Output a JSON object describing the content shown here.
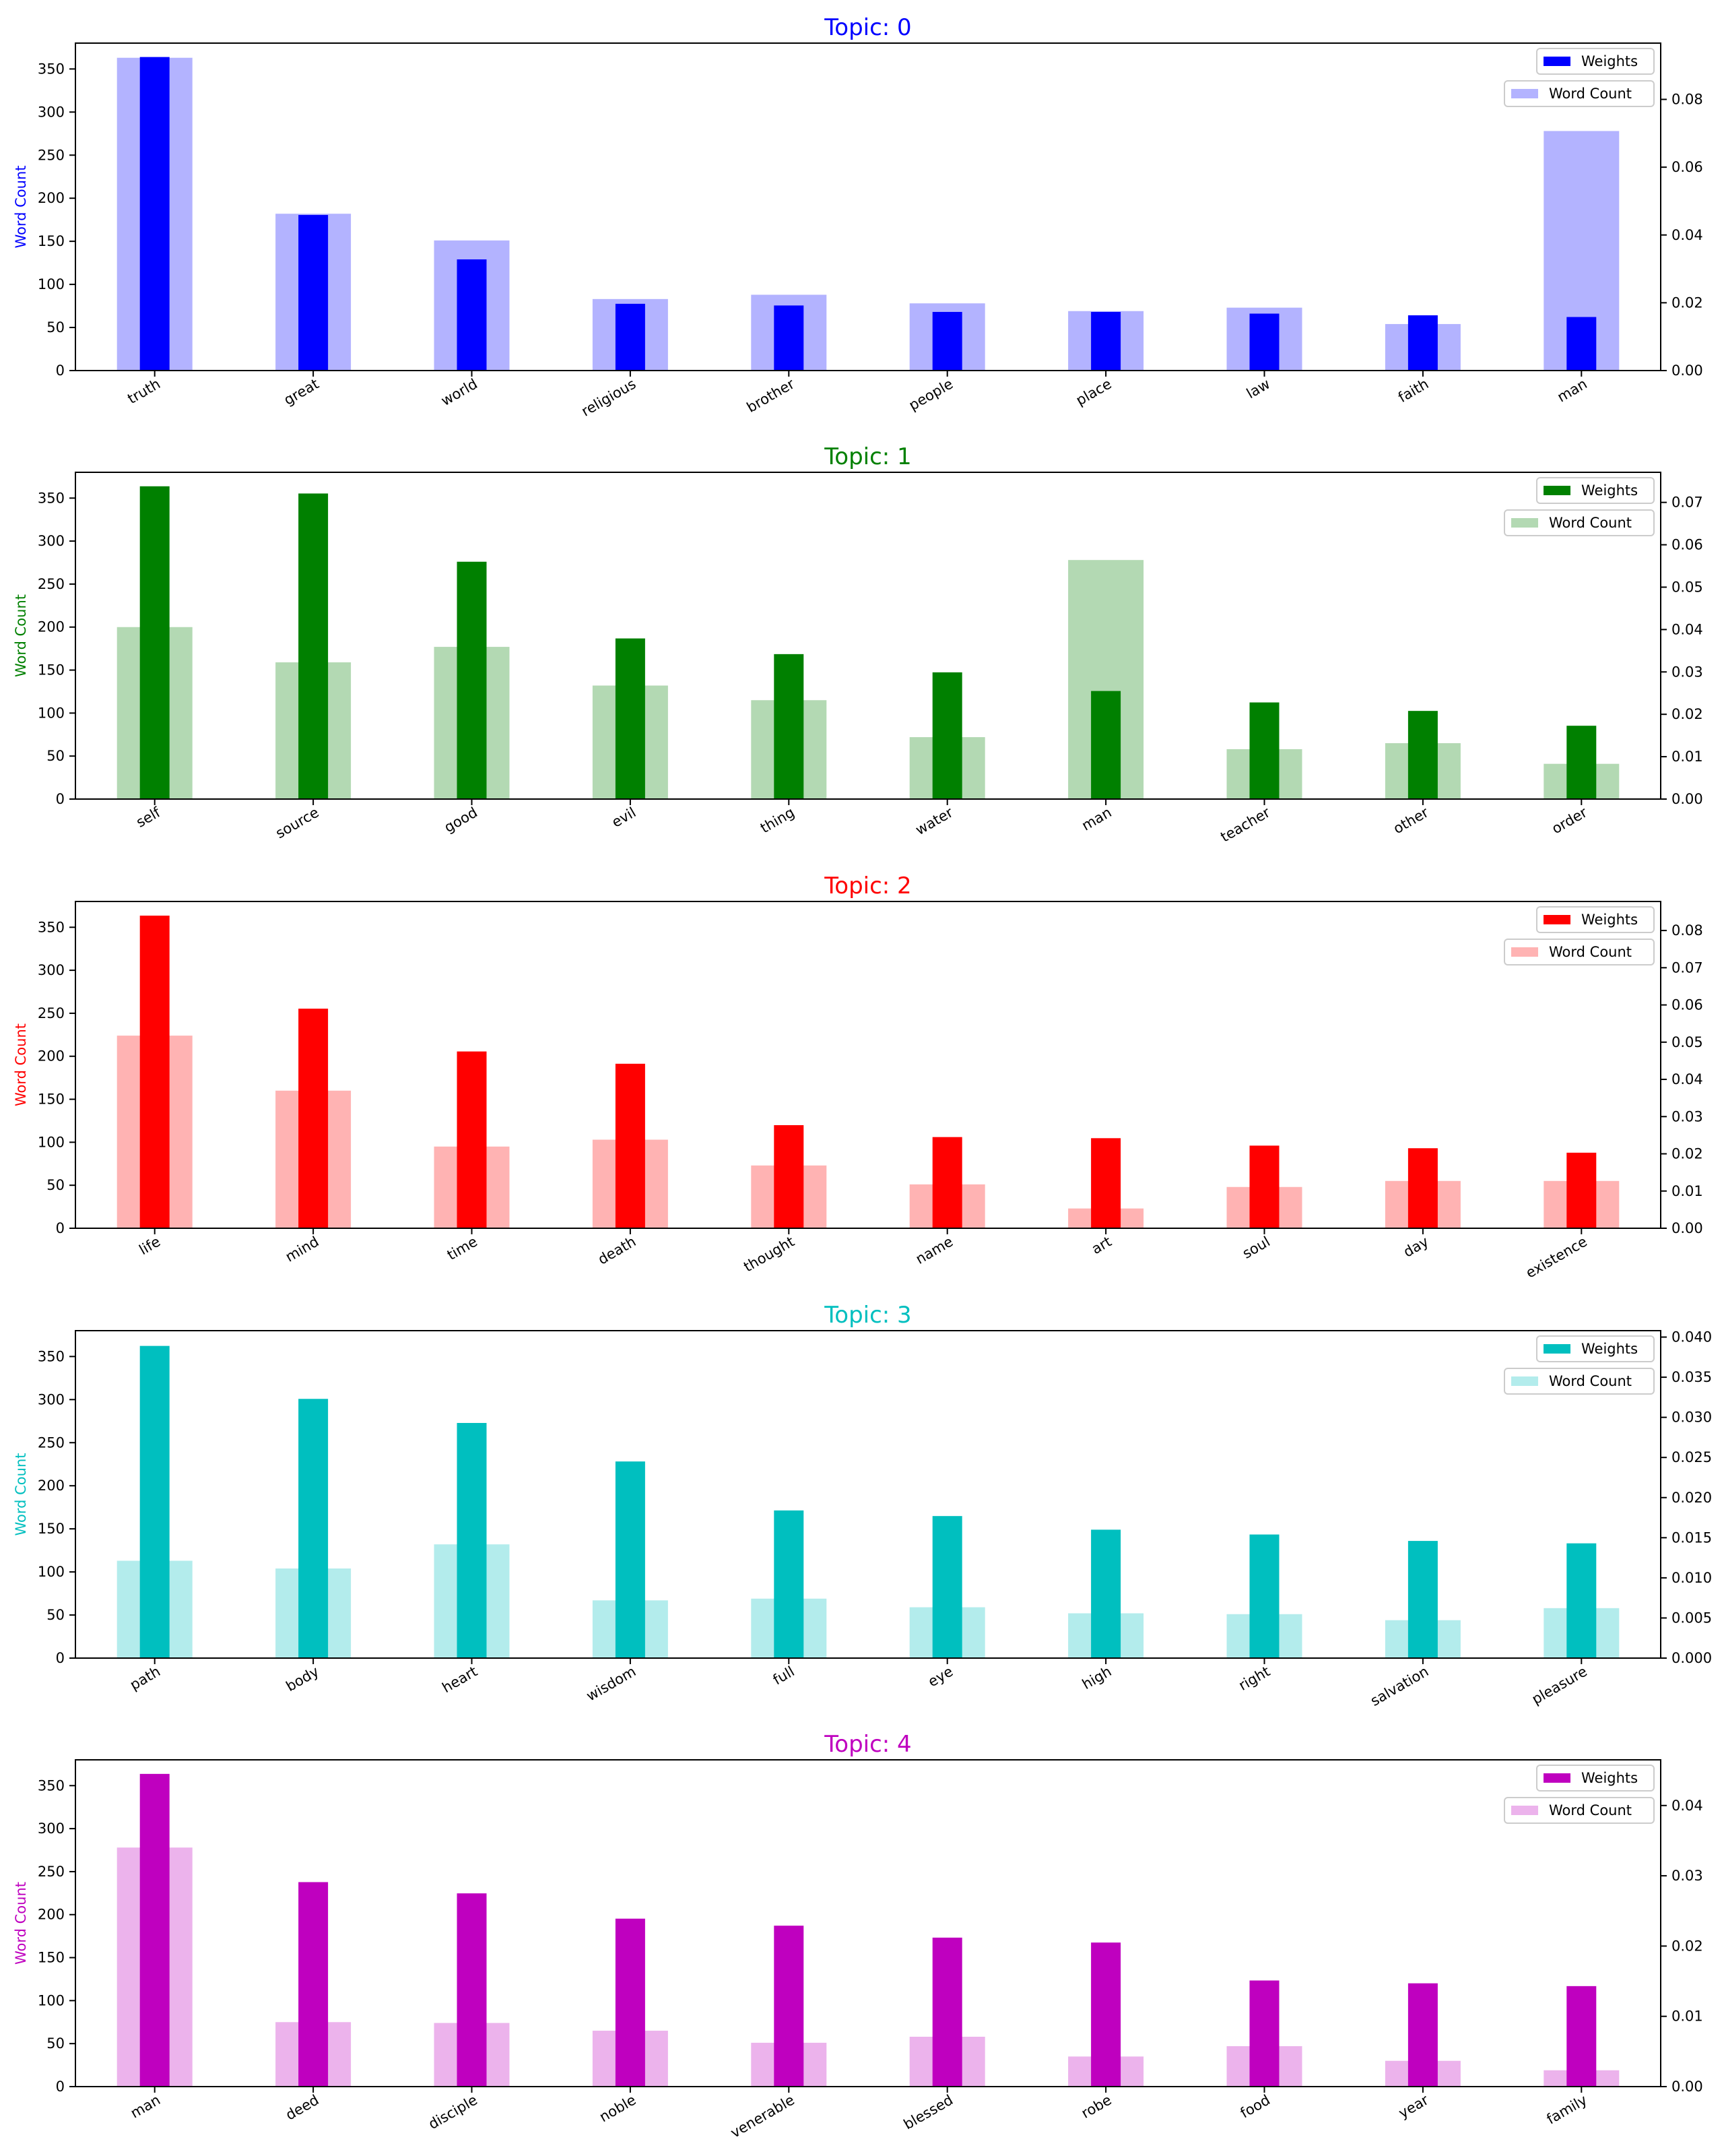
{
  "legend": {
    "weights_label": "Weights",
    "count_label": "Word Count"
  },
  "chart_data": [
    {
      "type": "bar",
      "title": "Topic: 0",
      "color": "#0000ff",
      "light_color": "#b3b3ff",
      "ylabel": "Word Count",
      "ylabel_right": "",
      "legend_position": "top-right",
      "grid": false,
      "categories": [
        "truth",
        "great",
        "world",
        "religious",
        "brother",
        "people",
        "place",
        "law",
        "faith",
        "man"
      ],
      "ylim": [
        0,
        380
      ],
      "yticks": [
        0,
        50,
        100,
        150,
        200,
        250,
        300,
        350
      ],
      "ylim_right": [
        0,
        0.0966
      ],
      "yticks_right": [
        "0.00",
        "0.02",
        "0.04",
        "0.06",
        "0.08"
      ],
      "series": [
        {
          "name": "Word Count",
          "axis": "left",
          "values": [
            363,
            182,
            151,
            83,
            88,
            78,
            69,
            73,
            54,
            278
          ]
        },
        {
          "name": "Weights",
          "axis": "right",
          "values": [
            0.0925,
            0.0459,
            0.0328,
            0.0197,
            0.0192,
            0.0173,
            0.0173,
            0.0168,
            0.0163,
            0.0158
          ]
        }
      ]
    },
    {
      "type": "bar",
      "title": "Topic: 1",
      "color": "#008000",
      "light_color": "#b3d9b3",
      "ylabel": "Word Count",
      "ylabel_right": "",
      "legend_position": "top-right",
      "grid": false,
      "categories": [
        "self",
        "source",
        "good",
        "evil",
        "thing",
        "water",
        "man",
        "teacher",
        "other",
        "order"
      ],
      "ylim": [
        0,
        380
      ],
      "yticks": [
        0,
        50,
        100,
        150,
        200,
        250,
        300,
        350
      ],
      "ylim_right": [
        0,
        0.0771
      ],
      "yticks_right": [
        "0.00",
        "0.01",
        "0.02",
        "0.03",
        "0.04",
        "0.05",
        "0.06",
        "0.07"
      ],
      "series": [
        {
          "name": "Word Count",
          "axis": "left",
          "values": [
            200,
            159,
            177,
            132,
            115,
            72,
            278,
            58,
            65,
            41
          ]
        },
        {
          "name": "Weights",
          "axis": "right",
          "values": [
            0.0738,
            0.0721,
            0.056,
            0.0379,
            0.0342,
            0.0299,
            0.0255,
            0.0228,
            0.0208,
            0.0173
          ]
        }
      ]
    },
    {
      "type": "bar",
      "title": "Topic: 2",
      "color": "#ff0000",
      "light_color": "#ffb3b3",
      "ylabel": "Word Count",
      "ylabel_right": "",
      "legend_position": "top-right",
      "grid": false,
      "categories": [
        "life",
        "mind",
        "time",
        "death",
        "thought",
        "name",
        "art",
        "soul",
        "day",
        "existence"
      ],
      "ylim": [
        0,
        380
      ],
      "yticks": [
        0,
        50,
        100,
        150,
        200,
        250,
        300,
        350
      ],
      "ylim_right": [
        0,
        0.0878
      ],
      "yticks_right": [
        "0.00",
        "0.01",
        "0.02",
        "0.03",
        "0.04",
        "0.05",
        "0.06",
        "0.07",
        "0.08"
      ],
      "series": [
        {
          "name": "Word Count",
          "axis": "left",
          "values": [
            224,
            160,
            95,
            103,
            73,
            51,
            23,
            48,
            55,
            55
          ]
        },
        {
          "name": "Weights",
          "axis": "right",
          "values": [
            0.084,
            0.059,
            0.0475,
            0.0442,
            0.0277,
            0.0245,
            0.0242,
            0.0222,
            0.0215,
            0.0203
          ]
        }
      ]
    },
    {
      "type": "bar",
      "title": "Topic: 3",
      "color": "#00bfbf",
      "light_color": "#b3ecec",
      "ylabel": "Word Count",
      "ylabel_right": "",
      "legend_position": "top-right",
      "grid": false,
      "categories": [
        "path",
        "body",
        "heart",
        "wisdom",
        "full",
        "eye",
        "high",
        "right",
        "salvation",
        "pleasure"
      ],
      "ylim": [
        0,
        380
      ],
      "yticks": [
        0,
        50,
        100,
        150,
        200,
        250,
        300,
        350
      ],
      "ylim_right": [
        0,
        0.0408
      ],
      "yticks_right": [
        "0.000",
        "0.005",
        "0.010",
        "0.015",
        "0.020",
        "0.025",
        "0.030",
        "0.035",
        "0.040"
      ],
      "series": [
        {
          "name": "Word Count",
          "axis": "left",
          "values": [
            113,
            104,
            132,
            67,
            69,
            59,
            52,
            51,
            44,
            58
          ]
        },
        {
          "name": "Weights",
          "axis": "right",
          "values": [
            0.0389,
            0.0323,
            0.0293,
            0.0245,
            0.0184,
            0.0177,
            0.016,
            0.0154,
            0.0146,
            0.0143
          ]
        }
      ]
    },
    {
      "type": "bar",
      "title": "Topic: 4",
      "color": "#bf00bf",
      "light_color": "#ecb3ec",
      "ylabel": "Word Count",
      "ylabel_right": "",
      "legend_position": "top-right",
      "grid": false,
      "categories": [
        "man",
        "deed",
        "disciple",
        "noble",
        "venerable",
        "blessed",
        "robe",
        "food",
        "year",
        "family"
      ],
      "ylim": [
        0,
        380
      ],
      "yticks": [
        0,
        50,
        100,
        150,
        200,
        250,
        300,
        350
      ],
      "ylim_right": [
        0,
        0.0465
      ],
      "yticks_right": [
        "0.00",
        "0.01",
        "0.02",
        "0.03",
        "0.04"
      ],
      "series": [
        {
          "name": "Word Count",
          "axis": "left",
          "values": [
            278,
            75,
            74,
            65,
            51,
            58,
            35,
            47,
            30,
            19
          ]
        },
        {
          "name": "Weights",
          "axis": "right",
          "values": [
            0.0445,
            0.0291,
            0.0275,
            0.0239,
            0.0229,
            0.0212,
            0.0205,
            0.0151,
            0.0147,
            0.0143
          ]
        }
      ]
    }
  ]
}
